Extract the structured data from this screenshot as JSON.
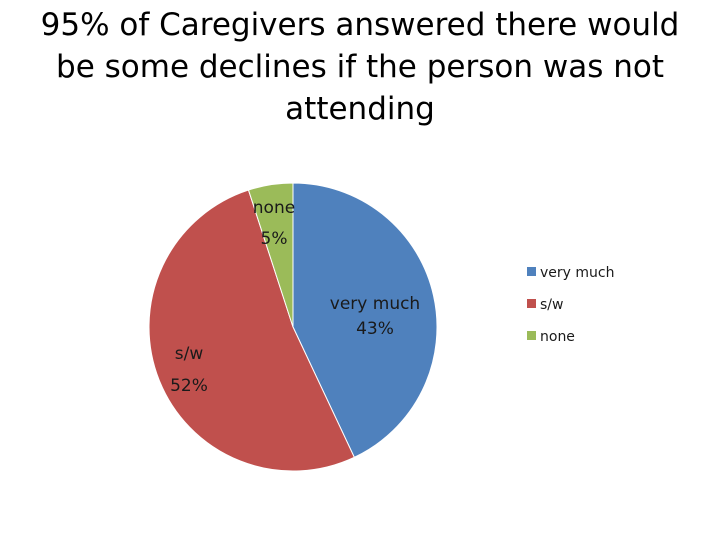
{
  "title": "95% of Caregivers answered there would be some declines if the person was not attending",
  "chart_data": {
    "type": "pie",
    "title": "95% of Caregivers answered there would be some declines if the person was not attending",
    "slices": [
      {
        "label": "very much",
        "value": 43,
        "display": "43%",
        "color": "#4F81BD"
      },
      {
        "label": "s/w",
        "value": 52,
        "display": "52%",
        "color": "#C0504D"
      },
      {
        "label": "none",
        "value": 5,
        "display": "5%",
        "color": "#9BBB59"
      }
    ],
    "start_position": "top",
    "direction": "clockwise",
    "legend_position": "right",
    "data_labels": "category and percent"
  }
}
